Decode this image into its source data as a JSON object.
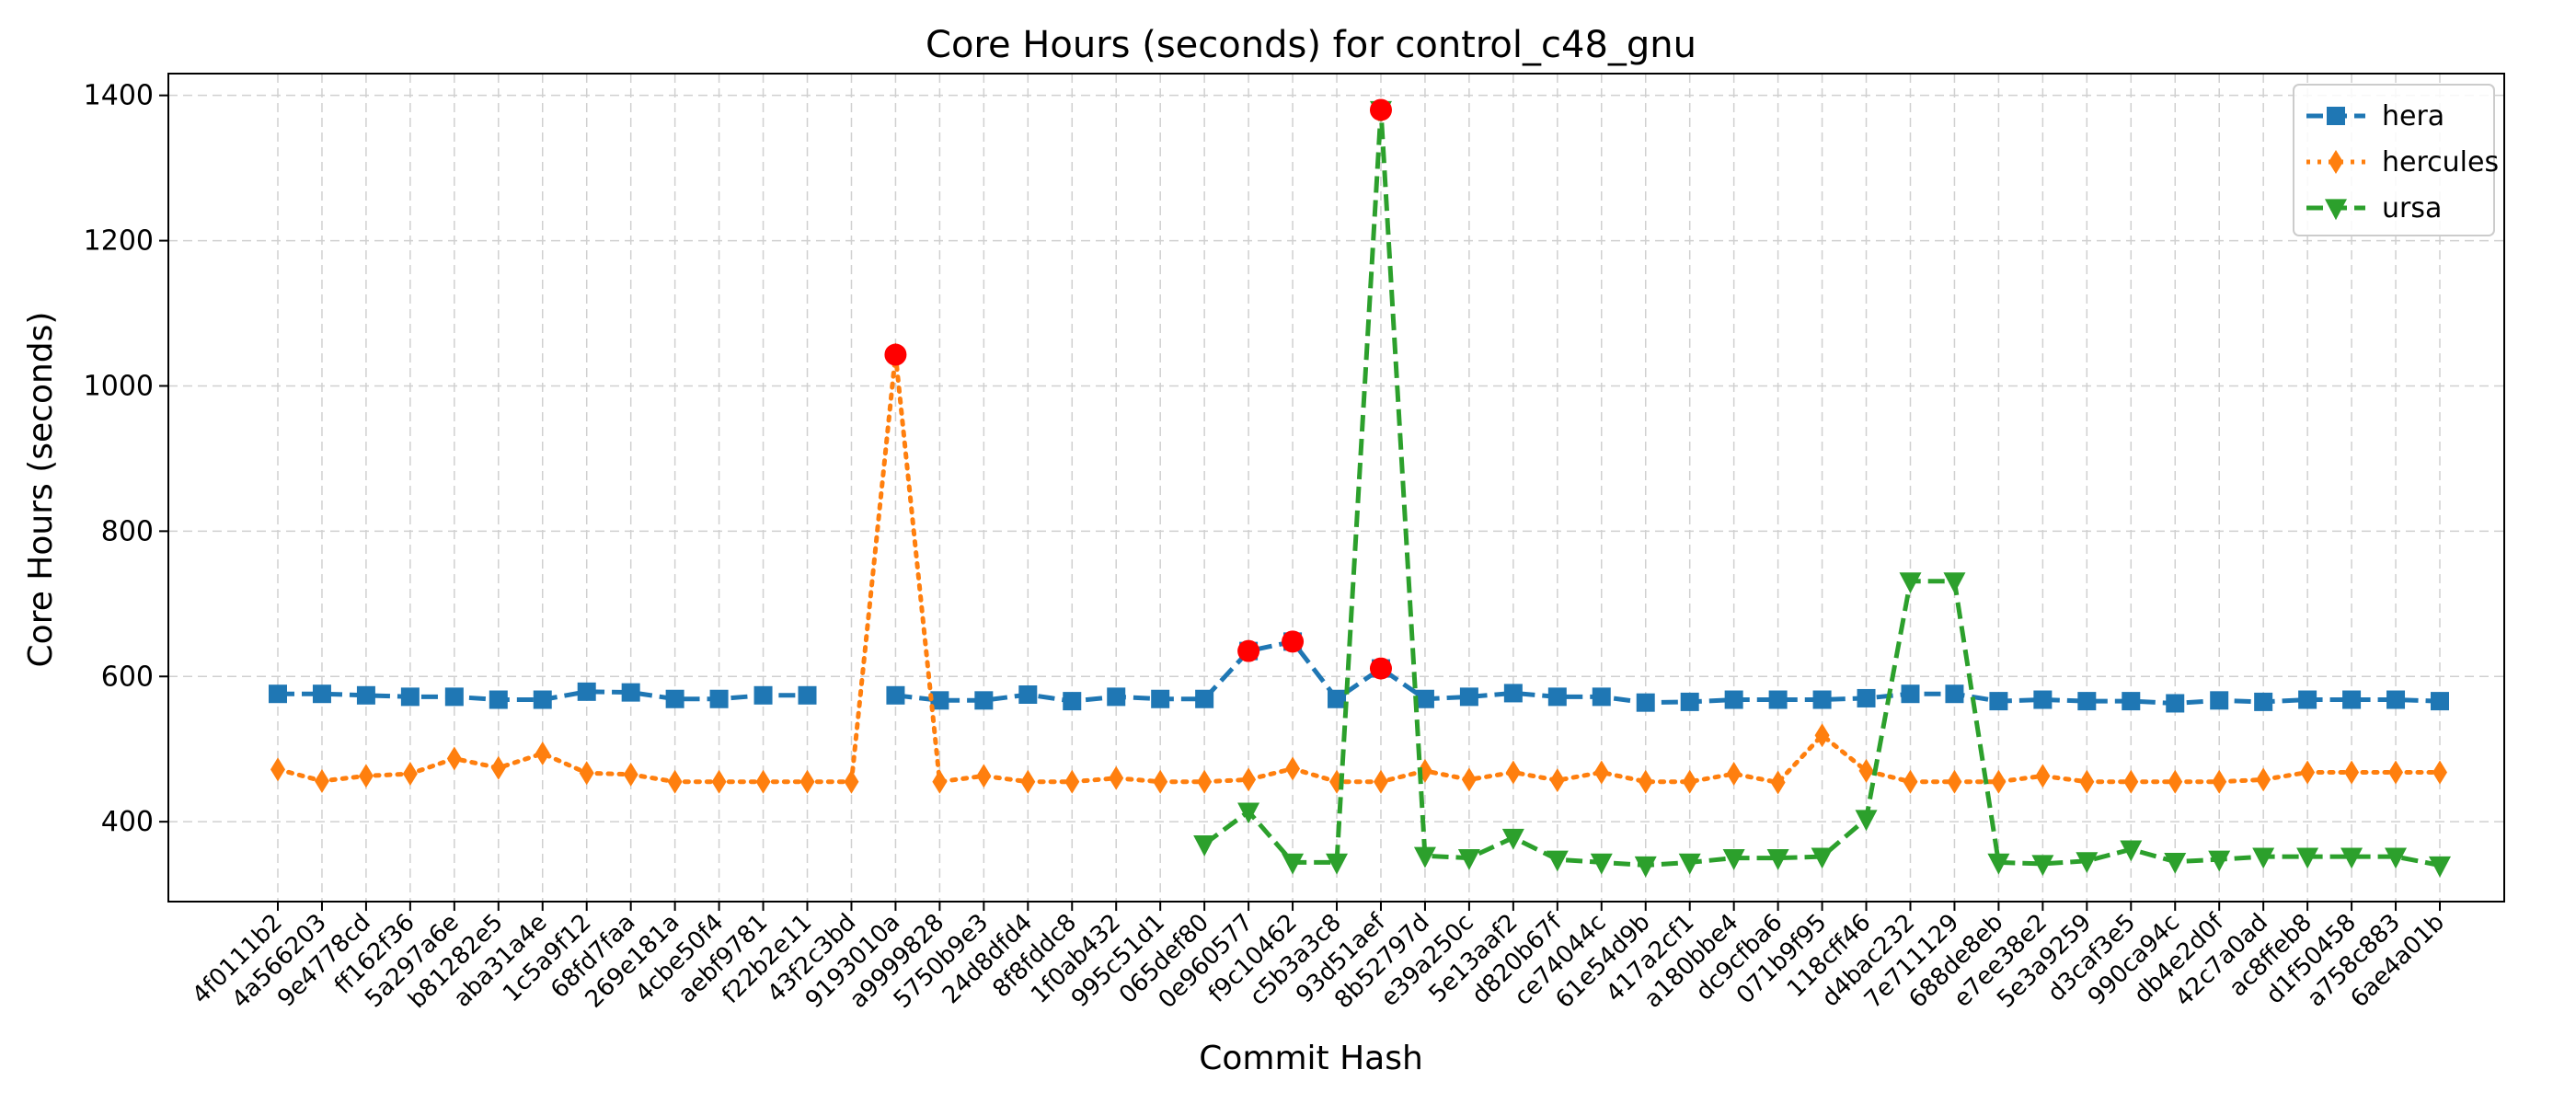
{
  "chart_data": {
    "type": "line",
    "title": "Core Hours (seconds) for control_c48_gnu",
    "xlabel": "Commit Hash",
    "ylabel": "Core Hours (seconds)",
    "ylim": [
      290,
      1430
    ],
    "yticks": [
      400,
      600,
      800,
      1000,
      1200,
      1400
    ],
    "grid": true,
    "legend_position": "top-right",
    "categories": [
      "4f0111b2",
      "4a566203",
      "9e4778cd",
      "ff162f36",
      "5a297a6e",
      "b81282e5",
      "aba31a4e",
      "1c5a9f12",
      "68fd7faa",
      "269e181a",
      "4cbe50f4",
      "aebf9781",
      "f22b2e11",
      "43f2c3bd",
      "9193010a",
      "a9999828",
      "5750b9e3",
      "24d8dfd4",
      "8f8fddc8",
      "1f0ab432",
      "995c51d1",
      "065def80",
      "0e960577",
      "f9c10462",
      "c5b3a3c8",
      "93d51aef",
      "8b52797d",
      "e39a250c",
      "5e13aaf2",
      "d820b67f",
      "ce74044c",
      "61e54d9b",
      "417a2cf1",
      "a180bbe4",
      "dc9cfba6",
      "071b9f95",
      "118cff46",
      "d4bac232",
      "7e711129",
      "688de8eb",
      "e7ee38e2",
      "5e3a9259",
      "d3caf3e5",
      "990ca94c",
      "db4e2d0f",
      "42c7a0ad",
      "ac8ffeb8",
      "d1f50458",
      "a758c883",
      "6ae4a01b"
    ],
    "series": [
      {
        "name": "hera",
        "color": "#1f77b4",
        "marker": "square",
        "linestyle": "dashed",
        "values": [
          576,
          576,
          574,
          572,
          572,
          568,
          568,
          579,
          578,
          569,
          569,
          574,
          574,
          null,
          574,
          567,
          567,
          575,
          566,
          572,
          569,
          569,
          635,
          648,
          569,
          611,
          569,
          572,
          577,
          572,
          572,
          564,
          565,
          568,
          568,
          568,
          570,
          576,
          576,
          566,
          568,
          566,
          566,
          563,
          567,
          565,
          568,
          568,
          568,
          566
        ]
      },
      {
        "name": "hercules",
        "color": "#ff7f0e",
        "marker": "diamond",
        "linestyle": "dotted",
        "values": [
          472,
          456,
          463,
          466,
          487,
          474,
          494,
          467,
          465,
          455,
          455,
          455,
          455,
          455,
          1043,
          455,
          463,
          455,
          455,
          460,
          455,
          455,
          458,
          473,
          455,
          455,
          470,
          458,
          468,
          457,
          468,
          455,
          455,
          466,
          454,
          519,
          470,
          455,
          455,
          455,
          463,
          455,
          455,
          455,
          455,
          458,
          468,
          468,
          468,
          468
        ]
      },
      {
        "name": "ursa",
        "color": "#2ca02c",
        "marker": "triangle-down",
        "linestyle": "dashed",
        "values": [
          null,
          null,
          null,
          null,
          null,
          null,
          null,
          null,
          null,
          null,
          null,
          null,
          null,
          null,
          null,
          null,
          null,
          null,
          null,
          null,
          null,
          369,
          414,
          344,
          344,
          1380,
          353,
          350,
          378,
          348,
          344,
          340,
          344,
          350,
          350,
          352,
          404,
          731,
          731,
          344,
          342,
          346,
          362,
          345,
          348,
          352,
          352,
          352,
          352,
          340
        ]
      }
    ],
    "highlighted_points": [
      {
        "series": "hercules",
        "x": "9193010a",
        "y": 1043
      },
      {
        "series": "hera",
        "x": "0e960577",
        "y": 635
      },
      {
        "series": "hera",
        "x": "f9c10462",
        "y": 648
      },
      {
        "series": "ursa",
        "x": "93d51aef",
        "y": 1380
      },
      {
        "series": "hera",
        "x": "93d51aef",
        "y": 611
      }
    ],
    "highlight_color": "#ff0000"
  }
}
